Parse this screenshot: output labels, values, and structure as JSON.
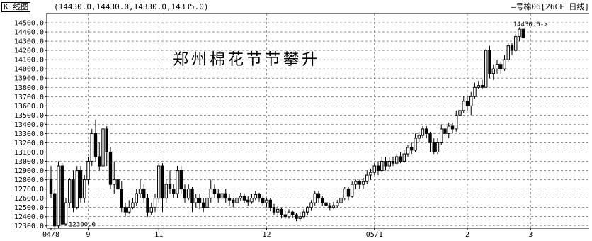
{
  "header": {
    "panel_label": "K 线图",
    "ohlc_readout": "(14430.0,14430.0,14330.0,14335.0)",
    "symbol_label": "—号棉06[26CF 日线]"
  },
  "chart_data": {
    "type": "candlestick",
    "title": "郑州棉花节节攀升",
    "ylim": [
      12275,
      14600
    ],
    "y_ticks": [
      12300,
      12400,
      12500,
      12600,
      12700,
      12800,
      12900,
      13000,
      13100,
      13200,
      13300,
      13400,
      13500,
      13600,
      13700,
      13800,
      13900,
      14000,
      14100,
      14200,
      14300,
      14400,
      14500
    ],
    "y_tick_labels": [
      "12300.0",
      "12400.0",
      "12500.0",
      "12600.0",
      "12700.0",
      "12800.0",
      "12900.0",
      "13000.0",
      "13100.0",
      "13200.0",
      "13300.0",
      "13400.0",
      "13500.0",
      "13600.0",
      "13700.0",
      "13800.0",
      "13900.0",
      "14000.0",
      "14100.0",
      "14200.0",
      "14300.0",
      "14400.0",
      "14500.0"
    ],
    "x_labels": [
      {
        "label": "04/8",
        "index": 0
      },
      {
        "label": "9",
        "index": 10
      },
      {
        "label": "11",
        "index": 29
      },
      {
        "label": "12",
        "index": 58
      },
      {
        "label": "05/1",
        "index": 87
      },
      {
        "label": "2",
        "index": 112
      },
      {
        "label": "3",
        "index": 129
      }
    ],
    "grid": true,
    "annotations": [
      {
        "text": "12300.0",
        "index": 4,
        "value": 12300
      },
      {
        "text": "14430.0->",
        "index": 134,
        "value": 14430
      }
    ],
    "candles": [
      [
        12800,
        12650,
        12950,
        12600
      ],
      [
        12650,
        12300,
        12700,
        12260
      ],
      [
        12300,
        12950,
        13000,
        12280
      ],
      [
        12950,
        12320,
        12980,
        12300
      ],
      [
        12320,
        12550,
        12600,
        12300
      ],
      [
        12550,
        12800,
        12820,
        12500
      ],
      [
        12800,
        12500,
        12900,
        12450
      ],
      [
        12500,
        12900,
        12950,
        12480
      ],
      [
        12900,
        12600,
        12950,
        12550
      ],
      [
        12600,
        12800,
        12850,
        12550
      ],
      [
        12800,
        13000,
        13050,
        12750
      ],
      [
        13000,
        13300,
        13350,
        12950
      ],
      [
        13300,
        13050,
        13450,
        13000
      ],
      [
        13050,
        12950,
        13200,
        12900
      ],
      [
        12950,
        13350,
        13400,
        12900
      ],
      [
        13350,
        13100,
        13380,
        12950
      ],
      [
        13100,
        12750,
        13150,
        12700
      ],
      [
        12750,
        12800,
        13000,
        12650
      ],
      [
        12800,
        12700,
        12850,
        12600
      ],
      [
        12700,
        12500,
        12780,
        12450
      ],
      [
        12500,
        12450,
        12550,
        12400
      ],
      [
        12450,
        12500,
        12580,
        12430
      ],
      [
        12500,
        12550,
        12600,
        12480
      ],
      [
        12550,
        12650,
        12700,
        12520
      ],
      [
        12650,
        12700,
        12800,
        12600
      ],
      [
        12700,
        12600,
        12750,
        12550
      ],
      [
        12600,
        12450,
        12650,
        12400
      ],
      [
        12450,
        12500,
        12550,
        12420
      ],
      [
        12500,
        12600,
        12650,
        12450
      ],
      [
        12600,
        12950,
        12980,
        12550
      ],
      [
        12950,
        12600,
        12980,
        12450
      ],
      [
        12600,
        12750,
        12800,
        12550
      ],
      [
        12750,
        12700,
        12900,
        12650
      ],
      [
        12700,
        12650,
        12750,
        12600
      ],
      [
        12650,
        12900,
        12950,
        12600
      ],
      [
        12900,
        12700,
        12950,
        12650
      ],
      [
        12700,
        12600,
        12750,
        12550
      ],
      [
        12600,
        12700,
        12750,
        12580
      ],
      [
        12700,
        12550,
        12720,
        12450
      ],
      [
        12550,
        12600,
        12650,
        12500
      ],
      [
        12600,
        12550,
        12650,
        12480
      ],
      [
        12550,
        12500,
        12600,
        12450
      ],
      [
        12500,
        12600,
        12650,
        12300
      ],
      [
        12600,
        12700,
        12800,
        12550
      ],
      [
        12700,
        12650,
        12750,
        12600
      ],
      [
        12650,
        12600,
        12700,
        12550
      ],
      [
        12600,
        12650,
        12680,
        12580
      ],
      [
        12650,
        12600,
        12700,
        12550
      ],
      [
        12600,
        12580,
        12650,
        12520
      ],
      [
        12580,
        12550,
        12600,
        12500
      ],
      [
        12550,
        12600,
        12650,
        12540
      ],
      [
        12600,
        12620,
        12660,
        12570
      ],
      [
        12620,
        12580,
        12650,
        12550
      ],
      [
        12580,
        12560,
        12620,
        12520
      ],
      [
        12560,
        12600,
        12650,
        12540
      ],
      [
        12600,
        12640,
        12680,
        12580
      ],
      [
        12640,
        12600,
        12660,
        12560
      ],
      [
        12600,
        12550,
        12620,
        12520
      ],
      [
        12550,
        12580,
        12600,
        12500
      ],
      [
        12580,
        12500,
        12600,
        12460
      ],
      [
        12500,
        12450,
        12540,
        12420
      ],
      [
        12450,
        12480,
        12520,
        12400
      ],
      [
        12480,
        12420,
        12500,
        12380
      ],
      [
        12420,
        12400,
        12460,
        12370
      ],
      [
        12400,
        12450,
        12480,
        12380
      ],
      [
        12450,
        12420,
        12470,
        12390
      ],
      [
        12420,
        12380,
        12440,
        12350
      ],
      [
        12380,
        12400,
        12450,
        12350
      ],
      [
        12400,
        12450,
        12480,
        12380
      ],
      [
        12450,
        12500,
        12520,
        12420
      ],
      [
        12500,
        12550,
        12580,
        12470
      ],
      [
        12550,
        12650,
        12680,
        12520
      ],
      [
        12650,
        12600,
        12680,
        12550
      ],
      [
        12600,
        12550,
        12620,
        12520
      ],
      [
        12550,
        12520,
        12570,
        12490
      ],
      [
        12520,
        12500,
        12550,
        12470
      ],
      [
        12500,
        12520,
        12560,
        12480
      ],
      [
        12520,
        12550,
        12580,
        12500
      ],
      [
        12550,
        12600,
        12620,
        12530
      ],
      [
        12600,
        12700,
        12720,
        12580
      ],
      [
        12700,
        12620,
        12720,
        12580
      ],
      [
        12620,
        12750,
        12780,
        12600
      ],
      [
        12750,
        12780,
        12800,
        12700
      ],
      [
        12780,
        12750,
        12800,
        12700
      ],
      [
        12750,
        12780,
        12820,
        12700
      ],
      [
        12780,
        12850,
        12900,
        12750
      ],
      [
        12850,
        12880,
        12920,
        12800
      ],
      [
        12880,
        12950,
        12980,
        12850
      ],
      [
        12950,
        12900,
        13000,
        12850
      ],
      [
        12900,
        13000,
        13050,
        12880
      ],
      [
        13000,
        12950,
        13050,
        12900
      ],
      [
        12950,
        13000,
        13050,
        12920
      ],
      [
        13000,
        12980,
        13050,
        12950
      ],
      [
        12980,
        13050,
        13080,
        12960
      ],
      [
        13050,
        13000,
        13100,
        12980
      ],
      [
        13000,
        13080,
        13120,
        12980
      ],
      [
        13080,
        13150,
        13180,
        13050
      ],
      [
        13150,
        13120,
        13200,
        13080
      ],
      [
        13120,
        13250,
        13300,
        13100
      ],
      [
        13250,
        13280,
        13320,
        13200
      ],
      [
        13280,
        13350,
        13380,
        13250
      ],
      [
        13350,
        13300,
        13380,
        13250
      ],
      [
        13300,
        13200,
        13320,
        13100
      ],
      [
        13200,
        13100,
        13250,
        13080
      ],
      [
        13100,
        13200,
        13250,
        13080
      ],
      [
        13200,
        13350,
        13400,
        13180
      ],
      [
        13350,
        13300,
        13800,
        13250
      ],
      [
        13300,
        13380,
        13420,
        13250
      ],
      [
        13380,
        13350,
        13420,
        13300
      ],
      [
        13350,
        13500,
        13550,
        13320
      ],
      [
        13500,
        13550,
        13600,
        13480
      ],
      [
        13550,
        13650,
        13700,
        13520
      ],
      [
        13650,
        13600,
        13700,
        13550
      ],
      [
        13600,
        13700,
        13750,
        13500
      ],
      [
        13700,
        13800,
        13850,
        13680
      ],
      [
        13800,
        13820,
        13870,
        13780
      ],
      [
        13820,
        13800,
        13880,
        13780
      ],
      [
        13800,
        14200,
        14220,
        13800
      ],
      [
        14200,
        13950,
        14250,
        13900
      ],
      [
        13950,
        14000,
        14050,
        13880
      ],
      [
        14000,
        14050,
        14100,
        13950
      ],
      [
        14050,
        14000,
        14080,
        13950
      ],
      [
        14000,
        14100,
        14150,
        13980
      ],
      [
        14100,
        14250,
        14280,
        14080
      ],
      [
        14250,
        14200,
        14280,
        14150
      ],
      [
        14200,
        14350,
        14380,
        14180
      ],
      [
        14350,
        14430,
        14450,
        14300
      ],
      [
        14430,
        14335,
        14430,
        14330
      ]
    ]
  }
}
